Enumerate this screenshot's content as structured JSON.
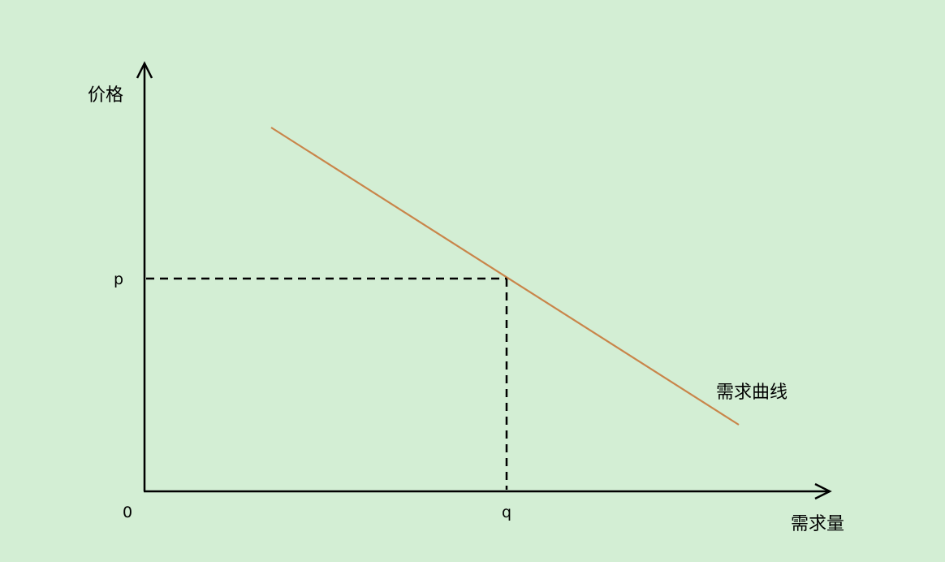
{
  "diagram": {
    "y_axis_label": "价格",
    "x_axis_label": "需求量",
    "origin_label": "0",
    "price_label": "p",
    "quantity_label": "q",
    "curve_label": "需求曲线",
    "curve_color": "#c9854a",
    "axis_color": "#000000",
    "background": "#d3eed4"
  }
}
